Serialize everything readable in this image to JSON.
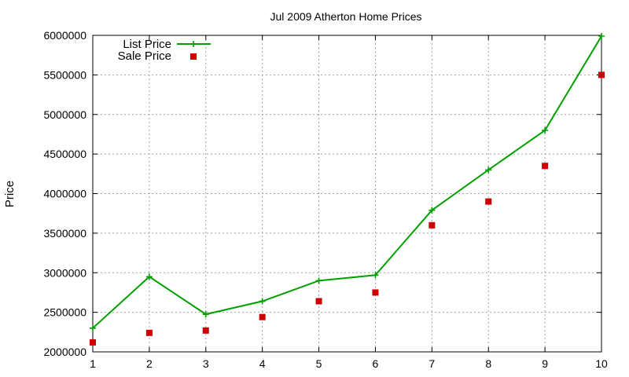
{
  "chart_data": {
    "type": "line",
    "title": "Jul 2009 Atherton Home Prices",
    "xlabel": "",
    "ylabel": "Price",
    "x": [
      1,
      2,
      3,
      4,
      5,
      6,
      7,
      8,
      9,
      10
    ],
    "xlim": [
      1,
      10
    ],
    "ylim": [
      2000000,
      6000000
    ],
    "x_ticks": [
      "1",
      "2",
      "3",
      "4",
      "5",
      "6",
      "7",
      "8",
      "9",
      "10"
    ],
    "y_ticks": [
      "2000000",
      "2500000",
      "3000000",
      "3500000",
      "4000000",
      "4500000",
      "5000000",
      "5500000",
      "6000000"
    ],
    "grid": true,
    "legend_position": "top-left",
    "series": [
      {
        "name": "List Price",
        "style": "line-with-plus-markers",
        "color": "#00a000",
        "values": [
          2300000,
          2950000,
          2475000,
          2640000,
          2900000,
          2970000,
          3790000,
          4300000,
          4800000,
          5990000
        ]
      },
      {
        "name": "Sale Price",
        "style": "square-points",
        "color": "#cc0000",
        "values": [
          2120000,
          2240000,
          2270000,
          2440000,
          2640000,
          2750000,
          3600000,
          3900000,
          4350000,
          5500000
        ]
      }
    ]
  }
}
